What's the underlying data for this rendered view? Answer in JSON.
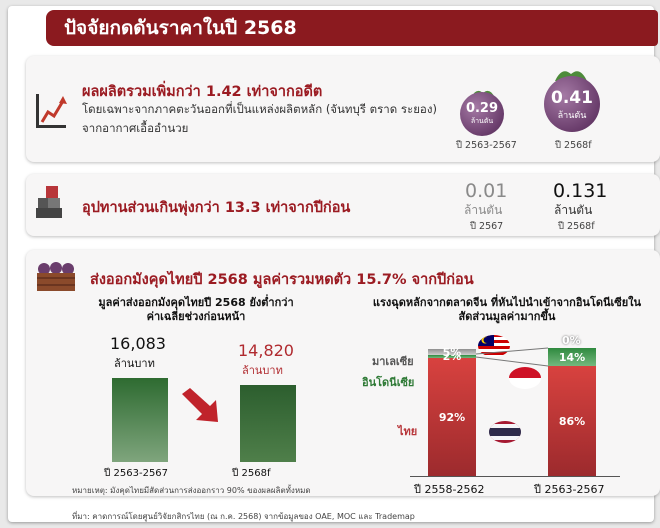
{
  "title": "ปัจจัยกดดันราคาในปี 2568",
  "production": {
    "headline": "ผลผลิตรวมเพิ่มกว่า 1.42 เท่าจากอดีต",
    "body": "โดยเฉพาะจากภาคตะวันออกที่เป็นแหล่งผลิตหลัก (จันทบุรี ตราด ระยอง) จากอากาศเอื้ออำนวย",
    "past": {
      "value": "0.29",
      "unit": "ล้านตัน",
      "period": "ปี 2563-2567"
    },
    "current": {
      "value": "0.41",
      "unit": "ล้านตัน",
      "period": "ปี 2568f"
    }
  },
  "supply": {
    "headline": "อุปทานส่วนเกินพุ่งกว่า 13.3 เท่าจากปีก่อน",
    "past": {
      "value": "0.01",
      "unit": "ล้านตัน",
      "period": "ปี 2567"
    },
    "current": {
      "value": "0.131",
      "unit": "ล้านตัน",
      "period": "ปี 2568f"
    }
  },
  "export": {
    "headline": "ส่งออกมังคุดไทยปี 2568 มูลค่ารวมหดตัว 15.7% จากปีก่อน",
    "left_title": "มูลค่าส่งออกมังคุดไทยปี 2568 ยังต่ำกว่าค่าเฉลี่ยช่วงก่อนหน้า",
    "right_title": "แรงฉุดหลักจากตลาดจีน ที่หันไปนำเข้าจากอินโดนีเซียในสัดส่วนมูลค่ามากขึ้น",
    "note": "หมายเหตุ: มังคุดไทยมีสัดส่วนการส่งออกราว 90% ของผลผลิตทั้งหมด"
  },
  "source": "ที่มา: คาดการณ์โดยศูนย์วิจัยกสิกรไทย (ณ ก.ค. 2568) จากข้อมูลของ OAE, MOC และ Trademap",
  "colors": {
    "brand": "#8b1a1f",
    "bar_green": "#2f6b32",
    "thai_red": "#b8363a",
    "indonesia_green": "#3a8a45",
    "malaysia_gray": "#a5a5a5"
  },
  "chart_data": [
    {
      "type": "bar",
      "categories": [
        "ปี 2563-2567",
        "ปี 2568f"
      ],
      "values": [
        16083,
        14820
      ],
      "value_labels": [
        "16,083",
        "14,820"
      ],
      "unit": "ล้านบาท"
    },
    {
      "type": "bar",
      "stacked": true,
      "categories": [
        "ปี 2558-2562",
        "ปี 2563-2567"
      ],
      "series": [
        {
          "name": "ไทย",
          "values": [
            92,
            86
          ],
          "labels": [
            "92%",
            "86%"
          ]
        },
        {
          "name": "อินโดนีเซีย",
          "values": [
            2,
            14
          ],
          "labels": [
            "2%",
            "14%"
          ]
        },
        {
          "name": "มาเลเซีย",
          "values": [
            5,
            0
          ],
          "labels": [
            "5%",
            "0%"
          ]
        }
      ]
    }
  ]
}
